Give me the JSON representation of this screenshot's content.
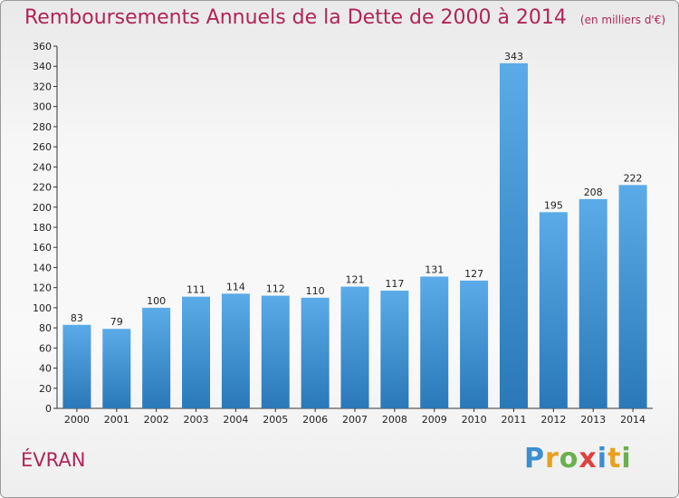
{
  "title": "Remboursements Annuels de la Dette de 2000 à 2014",
  "unit": "(en milliers d'€)",
  "place": "ÉVRAN",
  "logo": "Proxiti",
  "colors": {
    "bar_top": "#5aabe8",
    "bar_bottom": "#2a78b8",
    "title": "#b0245a"
  },
  "chart_data": {
    "type": "bar",
    "title": "Remboursements Annuels de la Dette de 2000 à 2014",
    "subtitle": "(en milliers d'€)",
    "categories": [
      "2000",
      "2001",
      "2002",
      "2003",
      "2004",
      "2005",
      "2006",
      "2007",
      "2008",
      "2009",
      "2010",
      "2011",
      "2012",
      "2013",
      "2014"
    ],
    "values": [
      83,
      79,
      100,
      111,
      114,
      112,
      110,
      121,
      117,
      131,
      127,
      343,
      195,
      208,
      222
    ],
    "ylim": [
      0,
      360
    ],
    "yticks": [
      0,
      20,
      40,
      60,
      80,
      100,
      120,
      140,
      160,
      180,
      200,
      220,
      240,
      260,
      280,
      300,
      320,
      340,
      360
    ],
    "grid": false,
    "xlabel": "",
    "ylabel": ""
  }
}
